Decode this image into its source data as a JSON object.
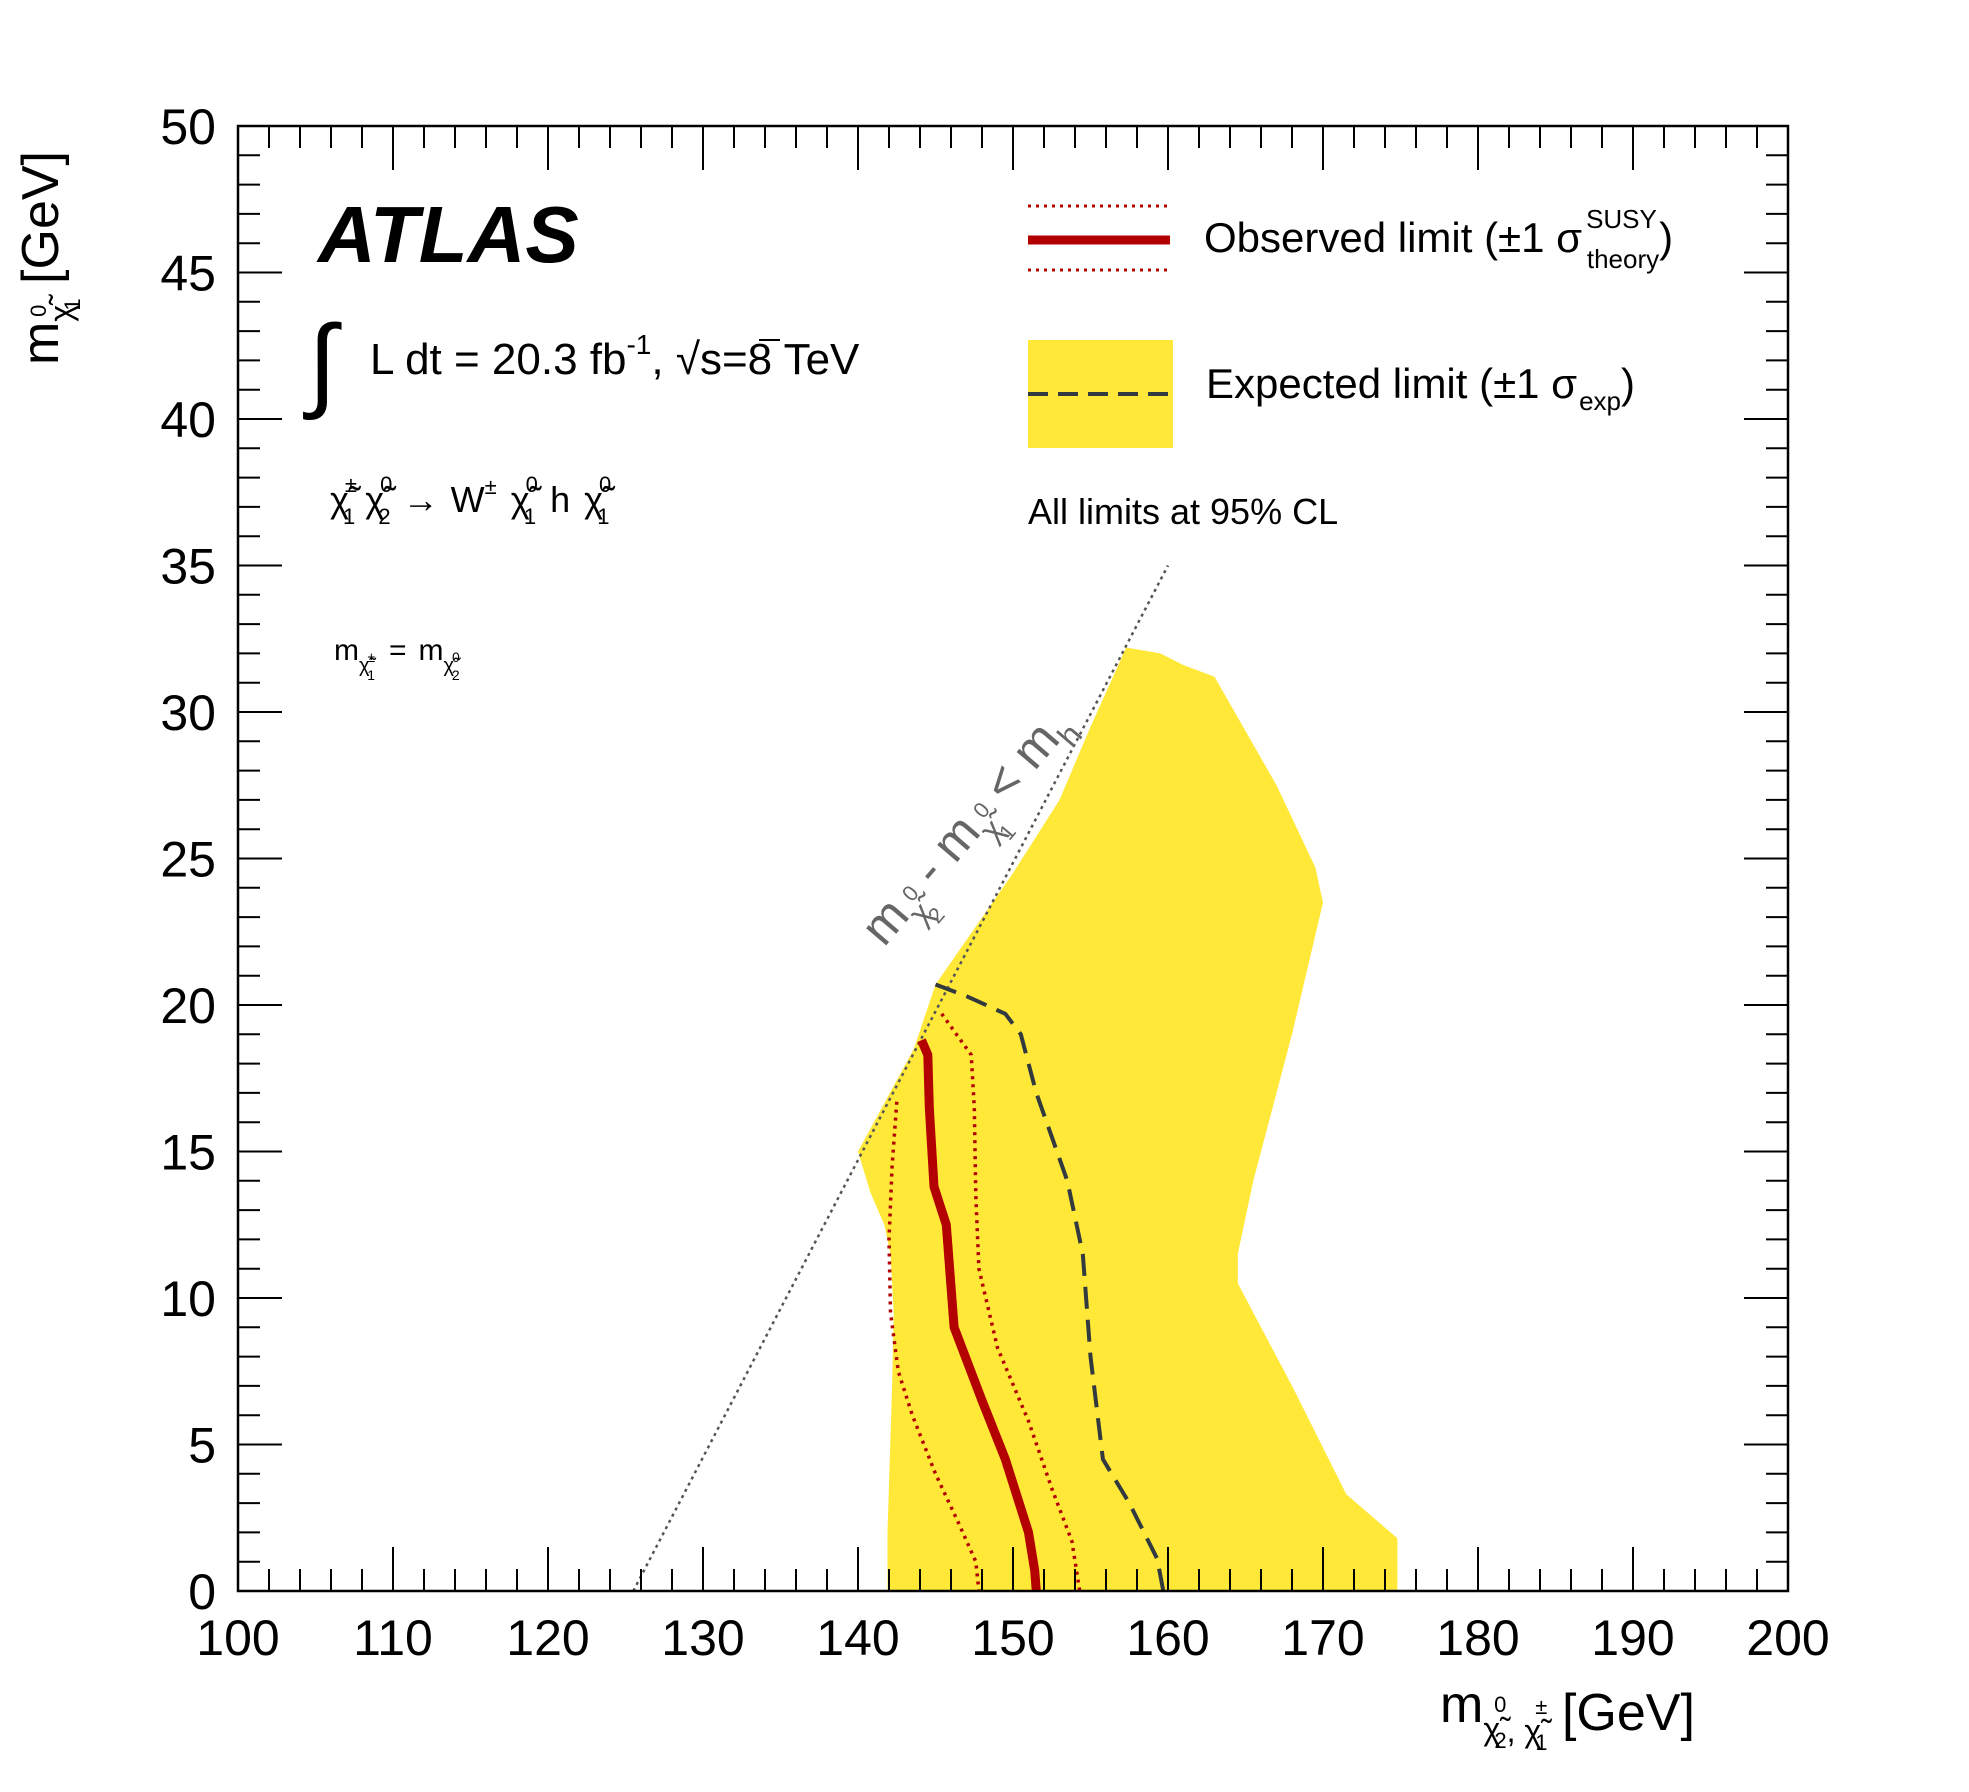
{
  "chart_data": {
    "type": "area",
    "experiment_label": "ATLAS",
    "luminosity_label": {
      "integral_symbol": "∫",
      "text_a": "L dt = 20.3 fb",
      "exp": "-1",
      "text_b": ", ",
      "root": "√",
      "text_c": "s=8 TeV"
    },
    "process_label": {
      "p1": "χ̃",
      "p1_sup": "±",
      "p1_sub": "1",
      "p2": "χ̃",
      "p2_sup": "0",
      "p2_sub": "2",
      "arrow": "→",
      "w": "W",
      "w_sup": "±",
      "p3": "χ̃",
      "p3_sup": "0",
      "p3_sub": "1",
      "h": "h",
      "p4": "χ̃",
      "p4_sup": "0",
      "p4_sub": "1"
    },
    "mass_relation_label": {
      "m1": "m",
      "m1_sub": "χ̃",
      "m1_subsup": "±",
      "m1_subsub": "1",
      "eq": "=",
      "m2": "m",
      "m2_sub": "χ̃",
      "m2_subsup": "0",
      "m2_subsub": "2"
    },
    "kinematic_label": {
      "m1": "m",
      "m1_sub": "χ̃",
      "m1_subsup": "0",
      "m1_subsub": "2",
      "minus": "-",
      "m2": "m",
      "m2_sub": "χ̃",
      "m2_subsup": "0",
      "m2_subsub": "1",
      "lt": "<",
      "m3": "m",
      "m3_sub": "h"
    },
    "legend": {
      "observed": {
        "text": "Observed limit (±1 σ",
        "sup": "SUSY",
        "sub": "theory",
        "close": ")"
      },
      "expected": {
        "text": "Expected limit (±1 σ",
        "sub": "exp",
        "close": ")"
      },
      "note": "All limits at 95% CL"
    },
    "xaxis": {
      "label": "m",
      "label_sub": "χ̃",
      "label_subsup": "0",
      "label_subsub": "2",
      "label_sep": ", ",
      "label_sub2": "χ̃",
      "label_subsup2": "±",
      "label_subsub2": "1",
      "label_unit": " [GeV]",
      "range": [
        100,
        200
      ],
      "major_ticks": [
        100,
        110,
        120,
        130,
        140,
        150,
        160,
        170,
        180,
        190,
        200
      ],
      "tick_labels": [
        "100",
        "110",
        "120",
        "130",
        "140",
        "150",
        "160",
        "170",
        "180",
        "190",
        "200"
      ]
    },
    "yaxis": {
      "label": "m",
      "label_sub": "χ̃",
      "label_subsup": "0",
      "label_subsub": "1",
      "label_unit": " [GeV]",
      "range": [
        0,
        50
      ],
      "major_ticks": [
        0,
        5,
        10,
        15,
        20,
        25,
        30,
        35,
        40,
        45,
        50
      ],
      "tick_labels": [
        "0",
        "5",
        "10",
        "15",
        "20",
        "25",
        "30",
        "35",
        "40",
        "45",
        "50"
      ]
    },
    "series": {
      "expected_band": {
        "color": "#ffe838",
        "points": [
          [
            141.9,
            0
          ],
          [
            141.9,
            2
          ],
          [
            142.2,
            7
          ],
          [
            142.3,
            9.5
          ],
          [
            142.1,
            11.5
          ],
          [
            141.7,
            12.5
          ],
          [
            140.8,
            13.6
          ],
          [
            140.0,
            15
          ],
          [
            143.6,
            18.5
          ],
          [
            145.0,
            20.7
          ],
          [
            150.0,
            24.5
          ],
          [
            153.0,
            27
          ],
          [
            155.0,
            29.5
          ],
          [
            157.3,
            32.2
          ],
          [
            159.5,
            32.0
          ],
          [
            161.0,
            31.6
          ],
          [
            163.0,
            31.2
          ],
          [
            167.0,
            27.5
          ],
          [
            169.5,
            24.7
          ],
          [
            170.0,
            23.5
          ],
          [
            168.0,
            19.0
          ],
          [
            165.5,
            14.0
          ],
          [
            164.5,
            11.5
          ],
          [
            164.5,
            10.5
          ],
          [
            165.5,
            9.5
          ],
          [
            168.0,
            7.0
          ],
          [
            171.5,
            3.3
          ],
          [
            174.8,
            1.8
          ],
          [
            174.8,
            0
          ]
        ]
      },
      "expected_limit": {
        "color": "#333a3f",
        "points": [
          [
            145.0,
            20.7
          ],
          [
            147.0,
            20.3
          ],
          [
            149.5,
            19.7
          ],
          [
            150.5,
            19.0
          ],
          [
            151.5,
            17.0
          ],
          [
            153.5,
            14.0
          ],
          [
            154.5,
            11.5
          ],
          [
            155.0,
            8.0
          ],
          [
            155.8,
            4.5
          ],
          [
            157.5,
            3.0
          ],
          [
            159.3,
            1.1
          ],
          [
            159.7,
            0
          ]
        ]
      },
      "observed_limit": {
        "color": "#b30000",
        "points": [
          [
            144.1,
            18.8
          ],
          [
            144.5,
            18.3
          ],
          [
            144.6,
            16.5
          ],
          [
            144.9,
            13.8
          ],
          [
            145.7,
            12.5
          ],
          [
            146.2,
            9.0
          ],
          [
            148.0,
            6.5
          ],
          [
            149.5,
            4.5
          ],
          [
            151.0,
            2.0
          ],
          [
            151.4,
            0.7
          ],
          [
            151.5,
            0
          ]
        ]
      },
      "observed_plus1sigma": {
        "color": "#b30000",
        "points": [
          [
            145.4,
            19.7
          ],
          [
            147.3,
            18.3
          ],
          [
            147.5,
            16.5
          ],
          [
            147.6,
            13.5
          ],
          [
            147.8,
            11.0
          ],
          [
            149.0,
            8.3
          ],
          [
            151.0,
            5.8
          ],
          [
            152.5,
            3.5
          ],
          [
            153.8,
            1.7
          ],
          [
            154.3,
            0
          ]
        ]
      },
      "observed_minus1sigma": {
        "color": "#b30000",
        "points": [
          [
            142.5,
            16.7
          ],
          [
            142.2,
            14.5
          ],
          [
            142.0,
            12.0
          ],
          [
            142.1,
            9.5
          ],
          [
            142.6,
            7.5
          ],
          [
            143.5,
            6.0
          ],
          [
            145.0,
            4.0
          ],
          [
            146.5,
            2.3
          ],
          [
            147.6,
            1.0
          ],
          [
            147.8,
            0
          ]
        ]
      },
      "kinematic_boundary": {
        "color": "#555555",
        "points": [
          [
            125.5,
            0
          ],
          [
            160.0,
            35.0
          ]
        ]
      }
    },
    "grid": false,
    "legend_position": "top-right"
  }
}
